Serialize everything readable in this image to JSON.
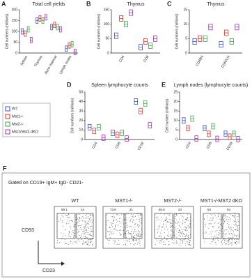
{
  "chart_data": [
    {
      "panel": "A",
      "type": "box",
      "title": "Total cell yields",
      "ylabel": "Cell numbers (millions)",
      "categories": [
        "Spleen",
        "Thymus",
        "Bone marrow",
        "Lymph nodes"
      ],
      "ylim": [
        0,
        200
      ],
      "yticks": [
        0,
        50,
        100,
        150,
        200
      ],
      "series": [
        {
          "name": "WT",
          "color": "#3b4fc4",
          "values": [
            100,
            150,
            120,
            20
          ]
        },
        {
          "name": "Mst1-/-",
          "color": "#e0302c",
          "values": [
            90,
            160,
            130,
            35
          ]
        },
        {
          "name": "Mst2-/-",
          "color": "#3aa84a",
          "values": [
            110,
            150,
            120,
            40
          ]
        },
        {
          "name": "Mst1/Mst2-dKO",
          "color": "#a02fb0",
          "values": [
            60,
            165,
            110,
            5
          ]
        }
      ]
    },
    {
      "panel": "B",
      "type": "box",
      "title": "Thymus",
      "ylabel": "Cell numbers (millions)",
      "categories": [
        "CD4",
        "CD8"
      ],
      "ylim": [
        0,
        150
      ],
      "yticks": [
        0,
        50,
        100,
        150
      ],
      "series": [
        {
          "name": "WT",
          "color": "#3b4fc4",
          "values": [
            60,
            20
          ]
        },
        {
          "name": "Mst1-/-",
          "color": "#e0302c",
          "values": [
            120,
            40
          ]
        },
        {
          "name": "Mst2-/-",
          "color": "#3aa84a",
          "values": [
            100,
            25
          ]
        },
        {
          "name": "Mst1/Mst2-dKO",
          "color": "#a02fb0",
          "values": [
            140,
            50
          ]
        }
      ]
    },
    {
      "panel": "C",
      "type": "box",
      "title": "Thymus",
      "ylabel": "Cell numbers (millions)",
      "categories": [
        "CD69hi",
        "CD62Lhi"
      ],
      "ylim": [
        0,
        15
      ],
      "yticks": [
        0,
        5,
        10,
        15
      ],
      "series": [
        {
          "name": "WT",
          "color": "#3b4fc4",
          "values": [
            4,
            3
          ]
        },
        {
          "name": "Mst1-/-",
          "color": "#e0302c",
          "values": [
            5,
            7
          ]
        },
        {
          "name": "Mst2-/-",
          "color": "#3aa84a",
          "values": [
            5,
            4
          ]
        },
        {
          "name": "Mst1/Mst2-dKO",
          "color": "#a02fb0",
          "values": [
            9,
            9
          ]
        }
      ]
    },
    {
      "panel": "D",
      "type": "box",
      "title": "Spleen lymphocyte counts",
      "ylabel": "Cell numbers (millions)",
      "categories": [
        "CD4",
        "CD8",
        "CD19"
      ],
      "ylim": [
        0,
        50
      ],
      "yticks": [
        0,
        10,
        20,
        30,
        40,
        50
      ],
      "series": [
        {
          "name": "WT",
          "color": "#3b4fc4",
          "values": [
            13,
            7,
            40
          ]
        },
        {
          "name": "Mst1-/-",
          "color": "#e0302c",
          "values": [
            9,
            5,
            30
          ]
        },
        {
          "name": "Mst2-/-",
          "color": "#3aa84a",
          "values": [
            13,
            7,
            38
          ]
        },
        {
          "name": "Mst1/Mst2-dKO",
          "color": "#a02fb0",
          "values": [
            2,
            1,
            15
          ]
        }
      ]
    },
    {
      "panel": "E",
      "type": "box",
      "title": "Lymph nodes (lymphocyte counts)",
      "ylabel": "Cell number (millions)",
      "categories": [
        "CD4",
        "CD8",
        "CD19"
      ],
      "ylim": [
        0,
        25
      ],
      "yticks": [
        0,
        5,
        10,
        15,
        20,
        25
      ],
      "series": [
        {
          "name": "WT",
          "color": "#3b4fc4",
          "values": [
            10,
            6,
            3
          ]
        },
        {
          "name": "Mst1-/-",
          "color": "#e0302c",
          "values": [
            6,
            3,
            1.5
          ]
        },
        {
          "name": "Mst2-/-",
          "color": "#3aa84a",
          "values": [
            11,
            7,
            3
          ]
        },
        {
          "name": "Mst1/Mst2-dKO",
          "color": "#a02fb0",
          "values": [
            0.5,
            0.3,
            0.2
          ]
        }
      ]
    },
    {
      "panel": "F",
      "type": "flow",
      "title": "Gated on CD19+ IgM+ IgD- CD21-",
      "ylabel": "CD93",
      "xlabel": "CD23",
      "categories": [
        "WT",
        "MST1-/-",
        "MST2-/-",
        "MST1-/-MST2 dKO"
      ],
      "gates": [
        [
          "59.1",
          "24"
        ],
        [
          "73.6",
          "21"
        ],
        [
          "60.6",
          "24"
        ],
        [
          "54",
          "54"
        ]
      ]
    }
  ]
}
